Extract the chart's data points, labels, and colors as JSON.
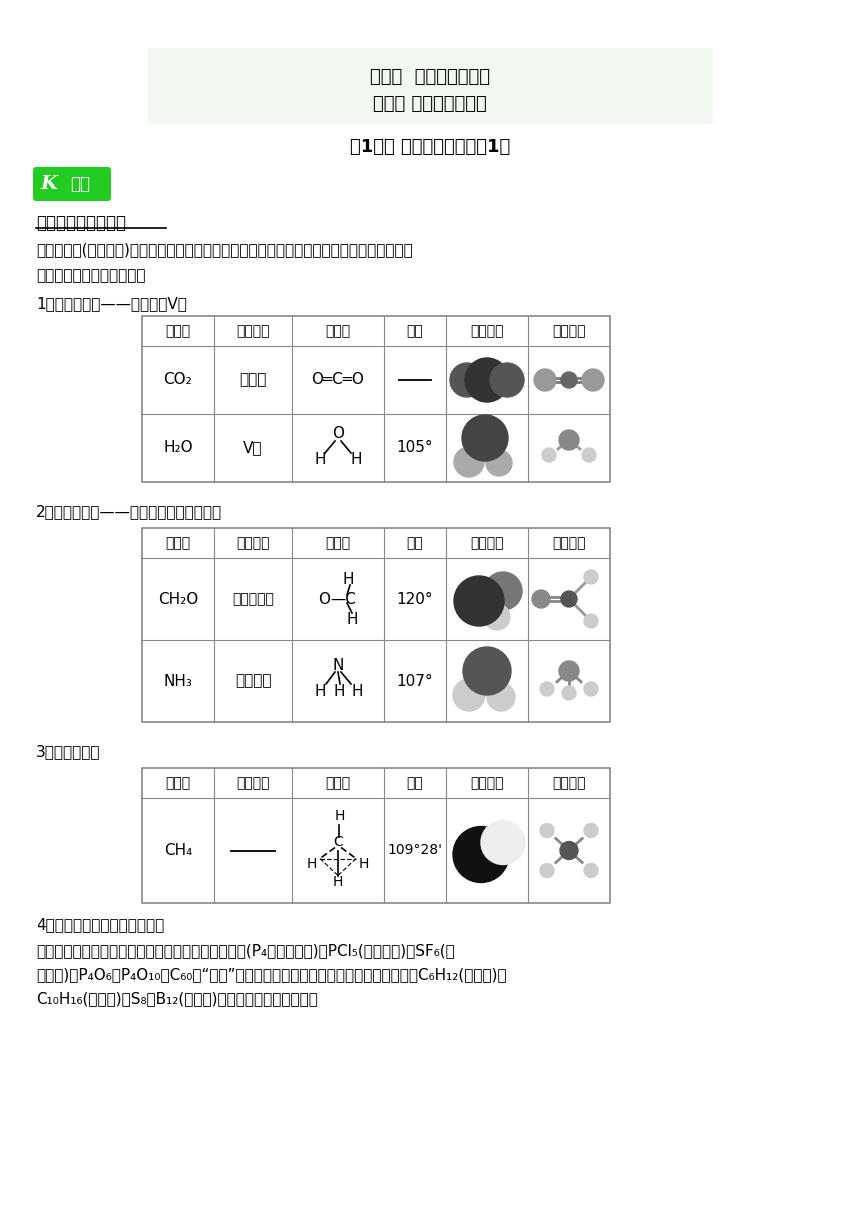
{
  "bg_color": "#ffffff",
  "header_bg": "#f0f8f0",
  "header_line1": "第二章  分子结构与性质",
  "header_line2": "第二节 分子的立体构型",
  "header_line3": "第1课时 分子的立体构型（1）",
  "section1_title": "一、形形色色的分子",
  "section1_text1": "单原子分子(稀有气体)、双原子分子不存在立体构型，多原子分子中，由于空间的位置关系，",
  "section1_text2": "会有不同类型的立体异构。",
  "sub1_title": "1．三原子分子——直线形和V形",
  "sub2_title": "2．四原子分子——平面三角形和三角锥形",
  "sub3_title": "3．五原子分子",
  "sub4_title": "4．其他多原子分子的立体构型",
  "sub4_text1": "多原子分子的立体构型形形色色，异彩纷咁。如白磷(P₄，正四面体)、PCl₅(三角双锥)、SF₆(正",
  "sub4_text2": "八面体)、P₄O₆、P₄O₁₀、C₆₀（“足球”状分子，由平面正五边形和正六边形组成）、C₆H₁₂(环己烷)、",
  "sub4_text3": "C₁₀H₁₆(金冈烷)、S₈、B₁₂(碗单质)等的立体构型如图所示。",
  "table_headers": [
    "化学式",
    "立体构型",
    "结构式",
    "键角",
    "比例模型",
    "球棍模型"
  ],
  "green_badge_color": "#22cc22",
  "badge_text": "知识",
  "table_border_color": "#888888"
}
